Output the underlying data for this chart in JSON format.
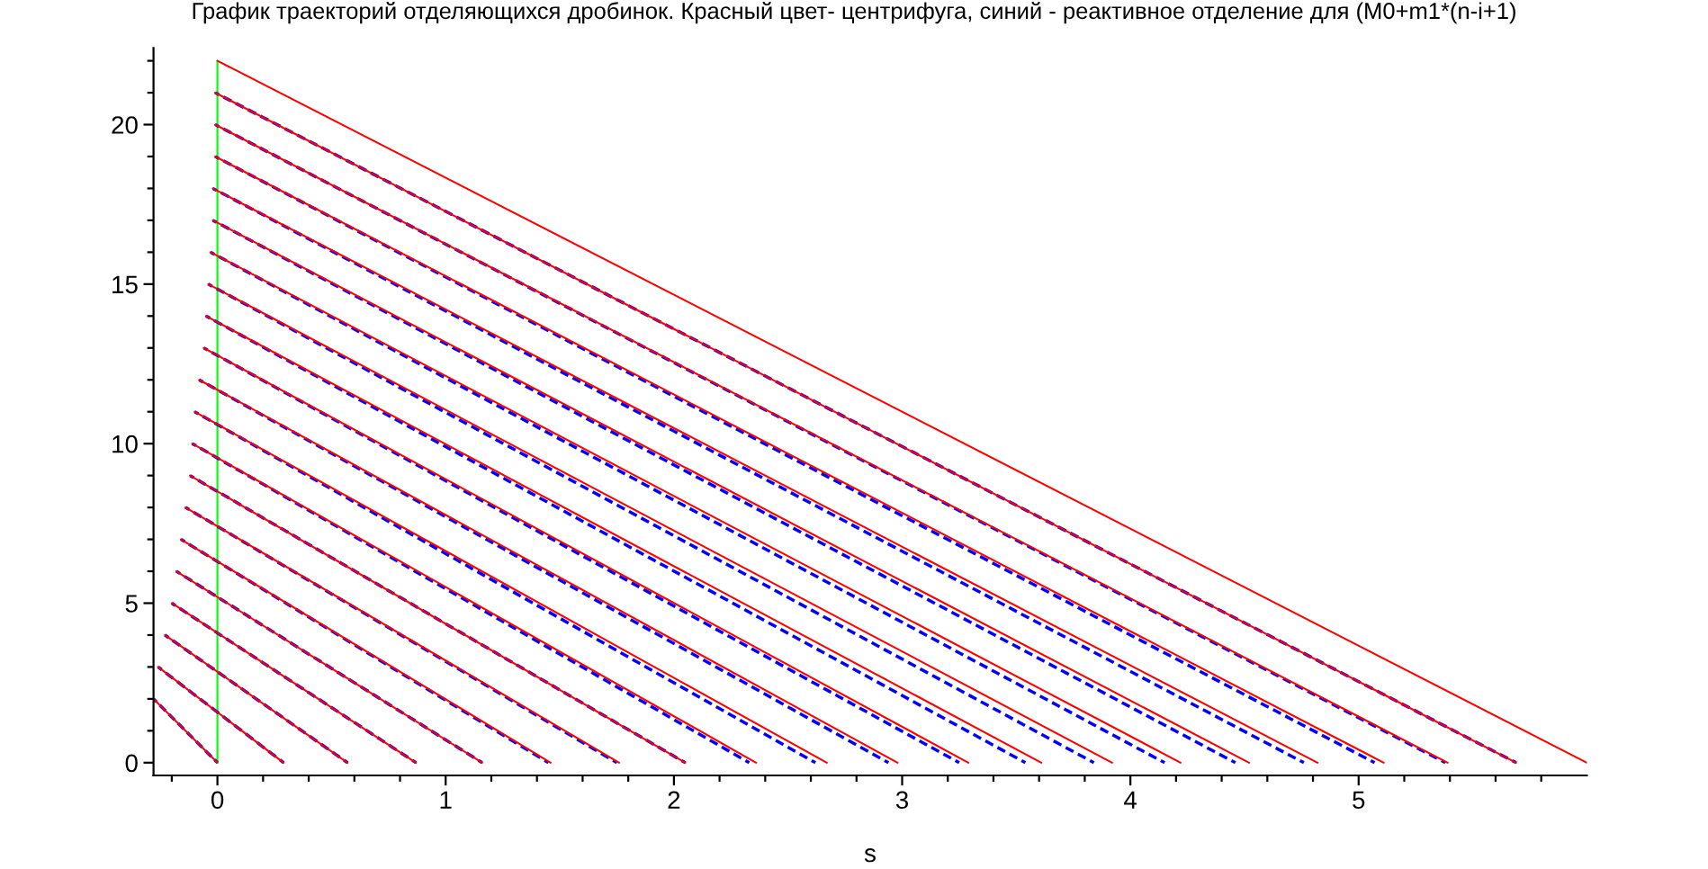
{
  "chart_data": {
    "type": "line",
    "title": "График траекторий отделяющихся дробинок. Красный цвет- центрифуга, синий - реактивное отделение для (M0+m1*(n-i+1)",
    "xlabel": "s",
    "xlim": [
      -0.28,
      6.0
    ],
    "ylim": [
      -0.4,
      22.4
    ],
    "xticks": [
      {
        "value": -0.2,
        "label": null
      },
      0,
      {
        "value": 0.2,
        "label": null
      },
      {
        "value": 0.4,
        "label": null
      },
      {
        "value": 0.6,
        "label": null
      },
      {
        "value": 0.8,
        "label": null
      },
      1,
      {
        "value": 1.2,
        "label": null
      },
      {
        "value": 1.4,
        "label": null
      },
      {
        "value": 1.6,
        "label": null
      },
      {
        "value": 1.8,
        "label": null
      },
      2,
      {
        "value": 2.2,
        "label": null
      },
      {
        "value": 2.4,
        "label": null
      },
      {
        "value": 2.6,
        "label": null
      },
      {
        "value": 2.8,
        "label": null
      },
      3,
      {
        "value": 3.2,
        "label": null
      },
      {
        "value": 3.4,
        "label": null
      },
      {
        "value": 3.6,
        "label": null
      },
      {
        "value": 3.8,
        "label": null
      },
      4,
      {
        "value": 4.2,
        "label": null
      },
      {
        "value": 4.4,
        "label": null
      },
      {
        "value": 4.6,
        "label": null
      },
      {
        "value": 4.8,
        "label": null
      },
      5,
      {
        "value": 5.2,
        "label": null
      },
      {
        "value": 5.4,
        "label": null
      },
      {
        "value": 5.6,
        "label": null
      },
      {
        "value": 5.8,
        "label": null
      }
    ],
    "yticks": [
      0,
      {
        "value": 1,
        "label": null
      },
      {
        "value": 2,
        "label": null
      },
      {
        "value": 3,
        "label": null
      },
      {
        "value": 4,
        "label": null
      },
      5,
      {
        "value": 6,
        "label": null
      },
      {
        "value": 7,
        "label": null
      },
      {
        "value": 8,
        "label": null
      },
      {
        "value": 9,
        "label": null
      },
      10,
      {
        "value": 11,
        "label": null
      },
      {
        "value": 12,
        "label": null
      },
      {
        "value": 13,
        "label": null
      },
      {
        "value": 14,
        "label": null
      },
      15,
      {
        "value": 16,
        "label": null
      },
      {
        "value": 17,
        "label": null
      },
      {
        "value": 18,
        "label": null
      },
      {
        "value": 19,
        "label": null
      },
      20,
      {
        "value": 21,
        "label": null
      },
      {
        "value": 22,
        "label": null
      }
    ],
    "series": [
      {
        "color": "#00ff00",
        "line_style": "solid",
        "x": [
          0,
          0
        ],
        "values": [
          0,
          22
        ]
      },
      {
        "color": "#0000ff",
        "line_style": "dashed",
        "x": [
          -0.28,
          0
        ],
        "values": [
          2,
          0
        ]
      },
      {
        "color": "#0000ff",
        "line_style": "dashed",
        "x": [
          -0.26,
          0.29
        ],
        "values": [
          3,
          0
        ]
      },
      {
        "color": "#0000ff",
        "line_style": "dashed",
        "x": [
          -0.23,
          0.57
        ],
        "values": [
          4,
          0
        ]
      },
      {
        "color": "#0000ff",
        "line_style": "dashed",
        "x": [
          -0.2,
          0.87
        ],
        "values": [
          5,
          0
        ]
      },
      {
        "color": "#0000ff",
        "line_style": "dashed",
        "x": [
          -0.18,
          1.16
        ],
        "values": [
          6,
          0
        ]
      },
      {
        "color": "#0000ff",
        "line_style": "dashed",
        "x": [
          -0.16,
          1.45
        ],
        "values": [
          7,
          0
        ]
      },
      {
        "color": "#0000ff",
        "line_style": "dashed",
        "x": [
          -0.14,
          1.75
        ],
        "values": [
          8,
          0
        ]
      },
      {
        "color": "#0000ff",
        "line_style": "dashed",
        "x": [
          -0.12,
          2.05
        ],
        "values": [
          9,
          0
        ]
      },
      {
        "color": "#0000ff",
        "line_style": "dashed",
        "x": [
          -0.11,
          2.33
        ],
        "values": [
          10,
          0
        ]
      },
      {
        "color": "#0000ff",
        "line_style": "dashed",
        "x": [
          -0.1,
          2.62
        ],
        "values": [
          11,
          0
        ]
      },
      {
        "color": "#0000ff",
        "line_style": "dashed",
        "x": [
          -0.08,
          2.94
        ],
        "values": [
          12,
          0
        ]
      },
      {
        "color": "#0000ff",
        "line_style": "dashed",
        "x": [
          -0.06,
          3.25
        ],
        "values": [
          13,
          0
        ]
      },
      {
        "color": "#0000ff",
        "line_style": "dashed",
        "x": [
          -0.05,
          3.54
        ],
        "values": [
          14,
          0
        ]
      },
      {
        "color": "#0000ff",
        "line_style": "dashed",
        "x": [
          -0.04,
          3.84
        ],
        "values": [
          15,
          0
        ]
      },
      {
        "color": "#0000ff",
        "line_style": "dashed",
        "x": [
          -0.03,
          4.15
        ],
        "values": [
          16,
          0
        ]
      },
      {
        "color": "#0000ff",
        "line_style": "dashed",
        "x": [
          -0.02,
          4.46
        ],
        "values": [
          17,
          0
        ]
      },
      {
        "color": "#0000ff",
        "line_style": "dashed",
        "x": [
          -0.02,
          4.76
        ],
        "values": [
          18,
          0
        ]
      },
      {
        "color": "#0000ff",
        "line_style": "dashed",
        "x": [
          -0.01,
          5.07
        ],
        "values": [
          19,
          0
        ]
      },
      {
        "color": "#0000ff",
        "line_style": "dashed",
        "x": [
          -0.01,
          5.38
        ],
        "values": [
          20,
          0
        ]
      },
      {
        "color": "#0000ff",
        "line_style": "dashed",
        "x": [
          -0.01,
          5.69
        ],
        "values": [
          21,
          0
        ]
      },
      {
        "color": "#ff0000",
        "line_style": "solid",
        "x": [
          -0.28,
          0
        ],
        "values": [
          2,
          0
        ]
      },
      {
        "color": "#ff0000",
        "line_style": "solid",
        "x": [
          -0.26,
          0.29
        ],
        "values": [
          3,
          0
        ]
      },
      {
        "color": "#ff0000",
        "line_style": "solid",
        "x": [
          -0.23,
          0.57
        ],
        "values": [
          4,
          0
        ]
      },
      {
        "color": "#ff0000",
        "line_style": "solid",
        "x": [
          -0.2,
          0.87
        ],
        "values": [
          5,
          0
        ]
      },
      {
        "color": "#ff0000",
        "line_style": "solid",
        "x": [
          -0.18,
          1.16
        ],
        "values": [
          6,
          0
        ]
      },
      {
        "color": "#ff0000",
        "line_style": "solid",
        "x": [
          -0.16,
          1.46
        ],
        "values": [
          7,
          0
        ]
      },
      {
        "color": "#ff0000",
        "line_style": "solid",
        "x": [
          -0.14,
          1.76
        ],
        "values": [
          8,
          0
        ]
      },
      {
        "color": "#ff0000",
        "line_style": "solid",
        "x": [
          -0.12,
          2.05
        ],
        "values": [
          9,
          0
        ]
      },
      {
        "color": "#ff0000",
        "line_style": "solid",
        "x": [
          -0.11,
          2.36
        ],
        "values": [
          10,
          0
        ]
      },
      {
        "color": "#ff0000",
        "line_style": "solid",
        "x": [
          -0.1,
          2.67
        ],
        "values": [
          11,
          0
        ]
      },
      {
        "color": "#ff0000",
        "line_style": "solid",
        "x": [
          -0.08,
          2.98
        ],
        "values": [
          12,
          0
        ]
      },
      {
        "color": "#ff0000",
        "line_style": "solid",
        "x": [
          -0.06,
          3.29
        ],
        "values": [
          13,
          0
        ]
      },
      {
        "color": "#ff0000",
        "line_style": "solid",
        "x": [
          -0.05,
          3.61
        ],
        "values": [
          14,
          0
        ]
      },
      {
        "color": "#ff0000",
        "line_style": "solid",
        "x": [
          -0.04,
          3.92
        ],
        "values": [
          15,
          0
        ]
      },
      {
        "color": "#ff0000",
        "line_style": "solid",
        "x": [
          -0.03,
          4.22
        ],
        "values": [
          16,
          0
        ]
      },
      {
        "color": "#ff0000",
        "line_style": "solid",
        "x": [
          -0.02,
          4.52
        ],
        "values": [
          17,
          0
        ]
      },
      {
        "color": "#ff0000",
        "line_style": "solid",
        "x": [
          -0.02,
          4.82
        ],
        "values": [
          18,
          0
        ]
      },
      {
        "color": "#ff0000",
        "line_style": "solid",
        "x": [
          -0.01,
          5.11
        ],
        "values": [
          19,
          0
        ]
      },
      {
        "color": "#ff0000",
        "line_style": "solid",
        "x": [
          -0.01,
          5.39
        ],
        "values": [
          20,
          0
        ]
      },
      {
        "color": "#ff0000",
        "line_style": "solid",
        "x": [
          -0.01,
          5.69
        ],
        "values": [
          21,
          0
        ]
      },
      {
        "color": "#ff0000",
        "line_style": "solid",
        "x": [
          0,
          6.0
        ],
        "values": [
          22,
          0
        ]
      }
    ]
  }
}
